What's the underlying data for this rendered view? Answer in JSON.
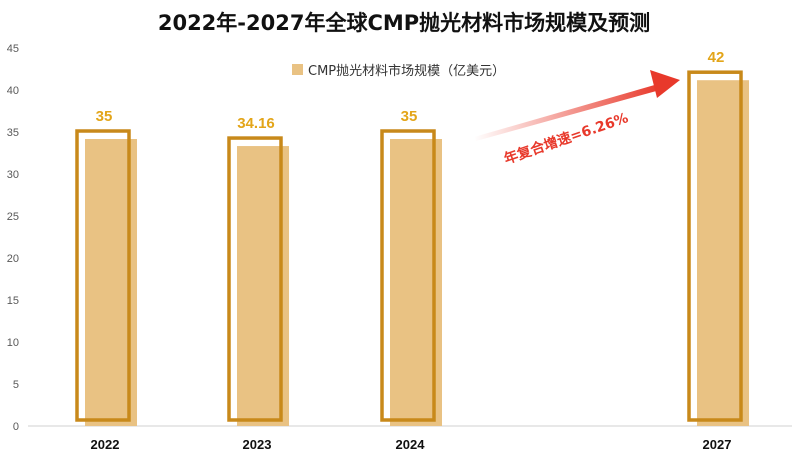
{
  "chart_data": {
    "type": "bar",
    "title": "2022年-2027年全球CMP抛光材料市场规模及预测",
    "categories": [
      "2022",
      "2023",
      "2024",
      "2027"
    ],
    "series": [
      {
        "name": "CMP抛光材料市场规模（亿美元）",
        "values": [
          35,
          34.16,
          35,
          42
        ]
      }
    ],
    "data_labels": [
      "35",
      "34.16",
      "35",
      "42"
    ],
    "ylim": [
      0,
      45
    ],
    "yticks": [
      "0",
      "5",
      "10",
      "15",
      "20",
      "25",
      "30",
      "35",
      "40",
      "45"
    ],
    "xlabel": "",
    "ylabel": "",
    "grid": false,
    "legend_position": "top-center",
    "annotation": "年复合增速=6.26%",
    "colors": {
      "bar_fill": "#E9C283",
      "bar_outline": "#C8891A",
      "data_label": "#E3A519",
      "annotation": "#E8392B"
    }
  }
}
